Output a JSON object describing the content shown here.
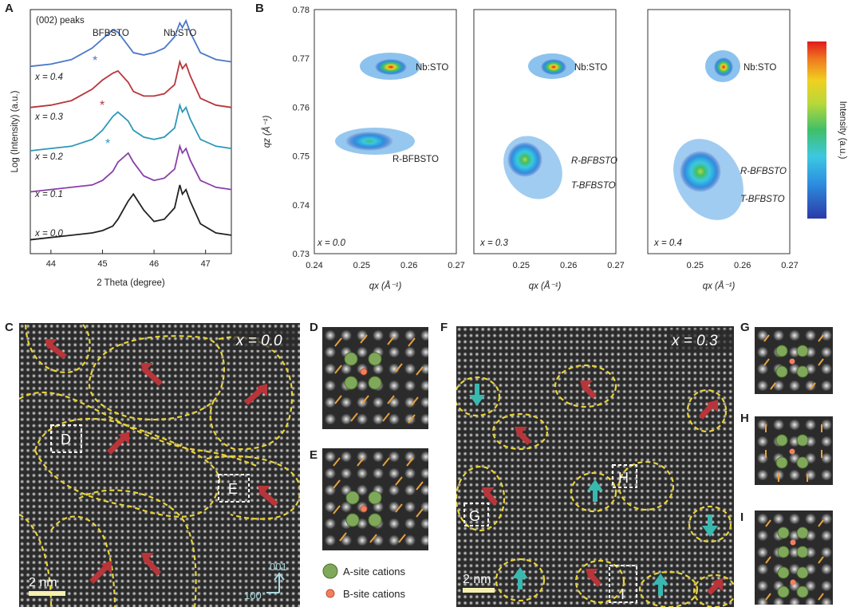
{
  "panels": {
    "A": "A",
    "B": "B",
    "C": "C",
    "D": "D",
    "E": "E",
    "F": "F",
    "G": "G",
    "H": "H",
    "I": "I"
  },
  "panelA": {
    "title": "(002) peaks",
    "annotations": {
      "bfbsto": "BFBSTO",
      "nbsto": "Nb:STO"
    },
    "xlabel": "2 Theta (degree)",
    "ylabel": "Log (Intensity) (a.u.)",
    "xticks": [
      "44",
      "45",
      "46",
      "47"
    ],
    "series_labels": [
      "x = 0.4",
      "x = 0.3",
      "x = 0.2",
      "x = 0.1",
      "x = 0.0"
    ],
    "star": "*"
  },
  "panelB": {
    "ylabel": "qz (Å⁻¹)",
    "xlabel": "qx (Å⁻¹)",
    "yticks": [
      "0.78",
      "0.77",
      "0.76",
      "0.75",
      "0.74",
      "0.73"
    ],
    "xticks": [
      "0.24",
      "0.25",
      "0.26",
      "0.27"
    ],
    "maps": [
      {
        "x_label": "x = 0.0",
        "peaks": [
          "Nb:STO",
          "R-BFBSTO"
        ]
      },
      {
        "x_label": "x = 0.3",
        "peaks": [
          "Nb:STO",
          "R-BFBSTO",
          "T-BFBSTO"
        ]
      },
      {
        "x_label": "x = 0.4",
        "peaks": [
          "Nb:STO",
          "R-BFBSTO",
          "T-BFBSTO"
        ]
      }
    ],
    "colorbar_label": "Intensity (a.u.)"
  },
  "panelC": {
    "x_label": "x = 0.0",
    "scale": "2 nm",
    "box_d": "D",
    "box_e": "E",
    "dir_001": "001",
    "dir_100": "100"
  },
  "panelF": {
    "x_label": "x = 0.3",
    "scale": "2 nm",
    "box_g": "G",
    "box_h": "H",
    "box_i": "I"
  },
  "legend": {
    "a_site": "A-site cations",
    "b_site": "B-site cations"
  },
  "colors": {
    "x04": "#4a78c8",
    "x03": "#b8353a",
    "x02": "#2c98b8",
    "x01": "#8a3fa8",
    "x00": "#222222",
    "domain_wall": "#e8d236",
    "arrow_red": "#b8353a",
    "arrow_cyan": "#39b8b0",
    "a_site": "#7fa85a",
    "b_site": "#f08060",
    "polar_vector": "#e8a040"
  },
  "chart_data": [
    {
      "type": "line",
      "title": "(002) peaks",
      "xlabel": "2 Theta (degree)",
      "ylabel": "Log (Intensity) (a.u.)",
      "xlim": [
        43.6,
        47.5
      ],
      "x": [
        43.6,
        44.0,
        44.4,
        44.8,
        45.0,
        45.2,
        45.3,
        45.5,
        45.6,
        45.8,
        46.0,
        46.2,
        46.4,
        46.5,
        46.55,
        46.62,
        46.7,
        46.9,
        47.2,
        47.5
      ],
      "series": [
        {
          "name": "x = 0.4",
          "values": [
            0.8,
            0.81,
            0.83,
            0.88,
            0.92,
            0.96,
            0.95,
            0.89,
            0.86,
            0.85,
            0.86,
            0.88,
            0.93,
            0.99,
            0.97,
            1.0,
            0.95,
            0.86,
            0.83,
            0.82
          ]
        },
        {
          "name": "x = 0.3",
          "values": [
            0.62,
            0.63,
            0.65,
            0.7,
            0.74,
            0.77,
            0.78,
            0.73,
            0.69,
            0.67,
            0.67,
            0.68,
            0.72,
            0.82,
            0.79,
            0.81,
            0.76,
            0.66,
            0.63,
            0.62
          ]
        },
        {
          "name": "x = 0.2",
          "values": [
            0.43,
            0.44,
            0.45,
            0.48,
            0.52,
            0.58,
            0.6,
            0.56,
            0.52,
            0.49,
            0.48,
            0.49,
            0.53,
            0.63,
            0.6,
            0.62,
            0.57,
            0.48,
            0.45,
            0.44
          ]
        },
        {
          "name": "x = 0.1",
          "values": [
            0.25,
            0.26,
            0.27,
            0.28,
            0.3,
            0.34,
            0.38,
            0.42,
            0.38,
            0.32,
            0.3,
            0.31,
            0.35,
            0.45,
            0.42,
            0.44,
            0.39,
            0.3,
            0.27,
            0.26
          ]
        },
        {
          "name": "x = 0.0",
          "values": [
            0.04,
            0.05,
            0.06,
            0.07,
            0.08,
            0.1,
            0.13,
            0.21,
            0.24,
            0.17,
            0.12,
            0.13,
            0.18,
            0.28,
            0.24,
            0.26,
            0.21,
            0.11,
            0.07,
            0.06
          ]
        }
      ]
    },
    {
      "type": "heatmap",
      "title": "x = 0.0",
      "xlabel": "qx (Å⁻¹)",
      "ylabel": "qz (Å⁻¹)",
      "xlim": [
        0.24,
        0.27
      ],
      "ylim": [
        0.73,
        0.78
      ],
      "peaks": [
        {
          "label": "Nb:STO",
          "qx": 0.2565,
          "qz": 0.7685
        },
        {
          "label": "R-BFBSTO",
          "qx": 0.2525,
          "qz": 0.753
        }
      ]
    },
    {
      "type": "heatmap",
      "title": "x = 0.3",
      "xlabel": "qx (Å⁻¹)",
      "ylim": [
        0.73,
        0.78
      ],
      "xlim": [
        0.24,
        0.27
      ],
      "peaks": [
        {
          "label": "Nb:STO",
          "qx": 0.2555,
          "qz": 0.7685
        },
        {
          "label": "R-BFBSTO",
          "qx": 0.252,
          "qz": 0.7495
        },
        {
          "label": "T-BFBSTO",
          "qx": 0.2545,
          "qz": 0.7445
        }
      ]
    },
    {
      "type": "heatmap",
      "title": "x = 0.4",
      "xlabel": "qx (Å⁻¹)",
      "ylim": [
        0.73,
        0.78
      ],
      "xlim": [
        0.24,
        0.27
      ],
      "peaks": [
        {
          "label": "Nb:STO",
          "qx": 0.255,
          "qz": 0.7685
        },
        {
          "label": "R-BFBSTO",
          "qx": 0.2525,
          "qz": 0.7475
        },
        {
          "label": "T-BFBSTO",
          "qx": 0.2555,
          "qz": 0.742
        }
      ]
    }
  ]
}
